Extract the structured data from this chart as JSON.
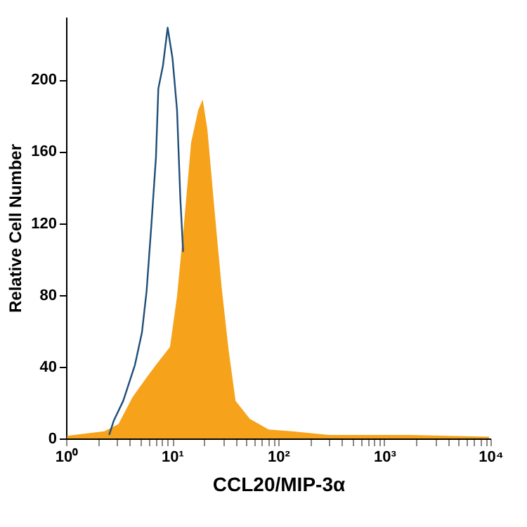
{
  "chart_data": {
    "type": "area",
    "xlabel": "CCL20/MIP-3α",
    "ylabel": "Relative Cell Number",
    "log": "x",
    "grid": false,
    "xlim": [
      1,
      10000
    ],
    "ylim": [
      0,
      235
    ],
    "xticks": [
      {
        "value": 1,
        "label": "10⁰"
      },
      {
        "value": 2,
        "label": null
      },
      {
        "value": 3,
        "label": null
      },
      {
        "value": 4,
        "label": null
      },
      {
        "value": 5,
        "label": null
      },
      {
        "value": 6,
        "label": null
      },
      {
        "value": 7,
        "label": null
      },
      {
        "value": 8,
        "label": null
      },
      {
        "value": 9,
        "label": null
      },
      {
        "value": 10,
        "label": "10¹"
      },
      {
        "value": 20,
        "label": null
      },
      {
        "value": 30,
        "label": null
      },
      {
        "value": 40,
        "label": null
      },
      {
        "value": 50,
        "label": null
      },
      {
        "value": 60,
        "label": null
      },
      {
        "value": 70,
        "label": null
      },
      {
        "value": 80,
        "label": null
      },
      {
        "value": 90,
        "label": null
      },
      {
        "value": 100,
        "label": "10²"
      },
      {
        "value": 200,
        "label": null
      },
      {
        "value": 300,
        "label": null
      },
      {
        "value": 400,
        "label": null
      },
      {
        "value": 500,
        "label": null
      },
      {
        "value": 600,
        "label": null
      },
      {
        "value": 700,
        "label": null
      },
      {
        "value": 800,
        "label": null
      },
      {
        "value": 900,
        "label": null
      },
      {
        "value": 1000,
        "label": "10³"
      },
      {
        "value": 2000,
        "label": null
      },
      {
        "value": 3000,
        "label": null
      },
      {
        "value": 4000,
        "label": null
      },
      {
        "value": 5000,
        "label": null
      },
      {
        "value": 6000,
        "label": null
      },
      {
        "value": 7000,
        "label": null
      },
      {
        "value": 8000,
        "label": null
      },
      {
        "value": 9000,
        "label": null
      },
      {
        "value": 10000,
        "label": "10⁴"
      }
    ],
    "yticks": [
      0,
      40,
      80,
      120,
      160,
      200
    ],
    "series": [
      {
        "color": "#f7a21b",
        "x": [
          1.02,
          2.3,
          3.12,
          4.23,
          5.74,
          7.04,
          9.54,
          11.1,
          12.9,
          15.1,
          17.6,
          19.4,
          21.5,
          25.1,
          29.3,
          34.1,
          39.6,
          53.9,
          81,
          134,
          299,
          1700,
          9700
        ],
        "values": [
          1.5,
          4,
          8,
          23,
          34,
          41,
          51,
          79,
          119,
          165,
          183,
          189,
          172,
          127,
          84,
          49,
          21,
          11,
          5,
          4,
          2,
          2,
          1
        ]
      },
      {
        "type": "line",
        "color": "#1f4e79",
        "x": [
          2.55,
          2.82,
          3.46,
          4.46,
          5.19,
          5.74,
          6.37,
          7.04,
          7.41,
          8.2,
          9.07,
          10.07,
          11.12,
          11.94,
          12.69
        ],
        "values": [
          2,
          10,
          21,
          41,
          59,
          82,
          119,
          157,
          195,
          208,
          229,
          212,
          183,
          134,
          104
        ]
      }
    ]
  }
}
